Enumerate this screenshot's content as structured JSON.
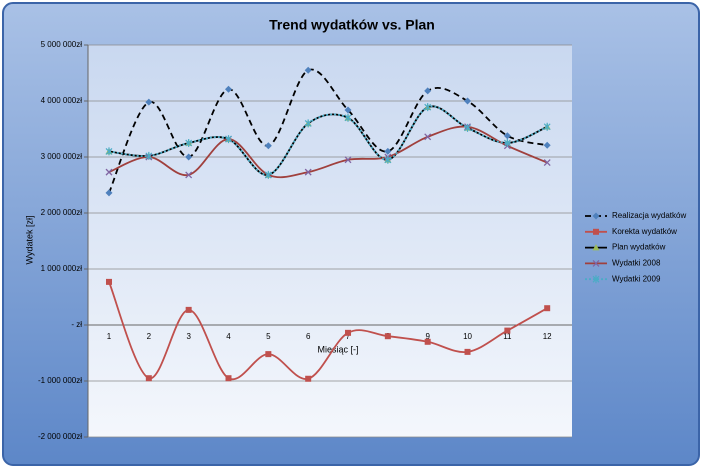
{
  "chart_data": {
    "type": "line",
    "title": "Trend wydatków vs. Plan",
    "x_label": "Miesiąc [-]",
    "y_label": "Wydatek [zł]",
    "categories": [
      "1",
      "2",
      "3",
      "4",
      "5",
      "6",
      "7",
      "8",
      "9",
      "10",
      "11",
      "12"
    ],
    "ylim": [
      -2000000,
      5000000
    ],
    "yticks": [
      {
        "value": -2000000,
        "label": "-2 000 000zł"
      },
      {
        "value": -1000000,
        "label": "-1 000 000zł"
      },
      {
        "value": 0,
        "label": "- zł"
      },
      {
        "value": 1000000,
        "label": "1 000 000zł"
      },
      {
        "value": 2000000,
        "label": "2 000 000zł"
      },
      {
        "value": 3000000,
        "label": "3 000 000zł"
      },
      {
        "value": 4000000,
        "label": "4 000 000zł"
      },
      {
        "value": 5000000,
        "label": "5 000 000zł"
      }
    ],
    "grid": true,
    "smooth": true,
    "legend": "right",
    "series": [
      {
        "name": "Realizacja wydatków",
        "color": "#000000",
        "dash": "dashed",
        "marker": "diamond",
        "marker_color": "#4f81bd",
        "values": [
          2360000,
          3980000,
          3000000,
          4210000,
          3200000,
          4550000,
          3840000,
          3100000,
          4180000,
          4000000,
          3380000,
          3210000
        ]
      },
      {
        "name": "Korekta wydatków",
        "color": "#c0504d",
        "dash": "solid",
        "marker": "square",
        "marker_color": "#c0504d",
        "values": [
          770000,
          -950000,
          270000,
          -950000,
          -520000,
          -960000,
          -140000,
          -200000,
          -300000,
          -480000,
          -100000,
          300000
        ]
      },
      {
        "name": "Plan wydatków",
        "color": "#000000",
        "dash": "solid",
        "marker": "triangle",
        "marker_color": "#9bbb59",
        "values": [
          3100000,
          3020000,
          3250000,
          3320000,
          2680000,
          3600000,
          3700000,
          2950000,
          3890000,
          3520000,
          3250000,
          3540000
        ]
      },
      {
        "name": "Wydatki 2008",
        "color": "#a0403d",
        "dash": "solid",
        "marker": "x",
        "marker_color": "#8064a2",
        "values": [
          2730000,
          3000000,
          2680000,
          3320000,
          2680000,
          2730000,
          2950000,
          3000000,
          3360000,
          3540000,
          3200000,
          2900000
        ]
      },
      {
        "name": "Wydatki 2009",
        "color": "#4bacc6",
        "dash": "dotted",
        "marker": "star",
        "marker_color": "#4bacc6",
        "values": [
          3100000,
          3020000,
          3250000,
          3320000,
          2680000,
          3600000,
          3700000,
          2950000,
          3890000,
          3520000,
          3250000,
          3540000
        ]
      }
    ]
  }
}
